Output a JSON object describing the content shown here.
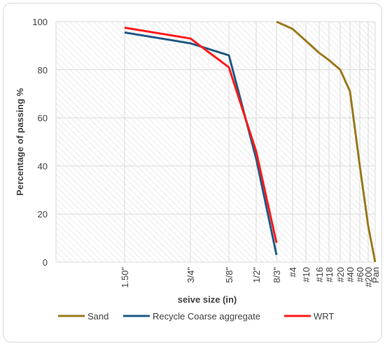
{
  "chart_data": {
    "type": "line",
    "xlabel": "seive size (in)",
    "ylabel": "Percentage of passing %",
    "ylim": [
      0,
      100
    ],
    "yticks": [
      0,
      20,
      40,
      60,
      80,
      100
    ],
    "grid": true,
    "legend_position": "bottom",
    "categories": [
      "1.50\"",
      "3/4\"",
      "5/8\"",
      "1/2\"",
      "8/3\"",
      "#4",
      "#10",
      "#16",
      "#18",
      "#20",
      "#40",
      "#60",
      "#200",
      "Pan"
    ],
    "series": [
      {
        "name": "Sand",
        "color": "#9a7a1c",
        "points": [
          {
            "x": "8/3\"",
            "y": 100
          },
          {
            "x": "#4",
            "y": 97
          },
          {
            "x": "#10",
            "y": 92
          },
          {
            "x": "#16",
            "y": 87
          },
          {
            "x": "#18",
            "y": 84
          },
          {
            "x": "#20",
            "y": 80
          },
          {
            "x": "#40",
            "y": 71
          },
          {
            "x": "#60",
            "y": 40
          },
          {
            "x": "#200",
            "y": 15
          },
          {
            "x": "Pan",
            "y": 0
          }
        ]
      },
      {
        "name": "Recycle Coarse aggregate",
        "color": "#1f5a86",
        "points": [
          {
            "x": "1.50\"",
            "y": 95.5
          },
          {
            "x": "3/4\"",
            "y": 91
          },
          {
            "x": "5/8\"",
            "y": 86
          },
          {
            "x": "1/2\"",
            "y": 43
          },
          {
            "x": "8/3\"",
            "y": 3
          }
        ]
      },
      {
        "name": "WRT",
        "color": "#ff1a1a",
        "points": [
          {
            "x": "1.50\"",
            "y": 97.5
          },
          {
            "x": "3/4\"",
            "y": 93
          },
          {
            "x": "5/8\"",
            "y": 81
          },
          {
            "x": "1/2\"",
            "y": 46
          },
          {
            "x": "8/3\"",
            "y": 8
          }
        ]
      }
    ]
  }
}
